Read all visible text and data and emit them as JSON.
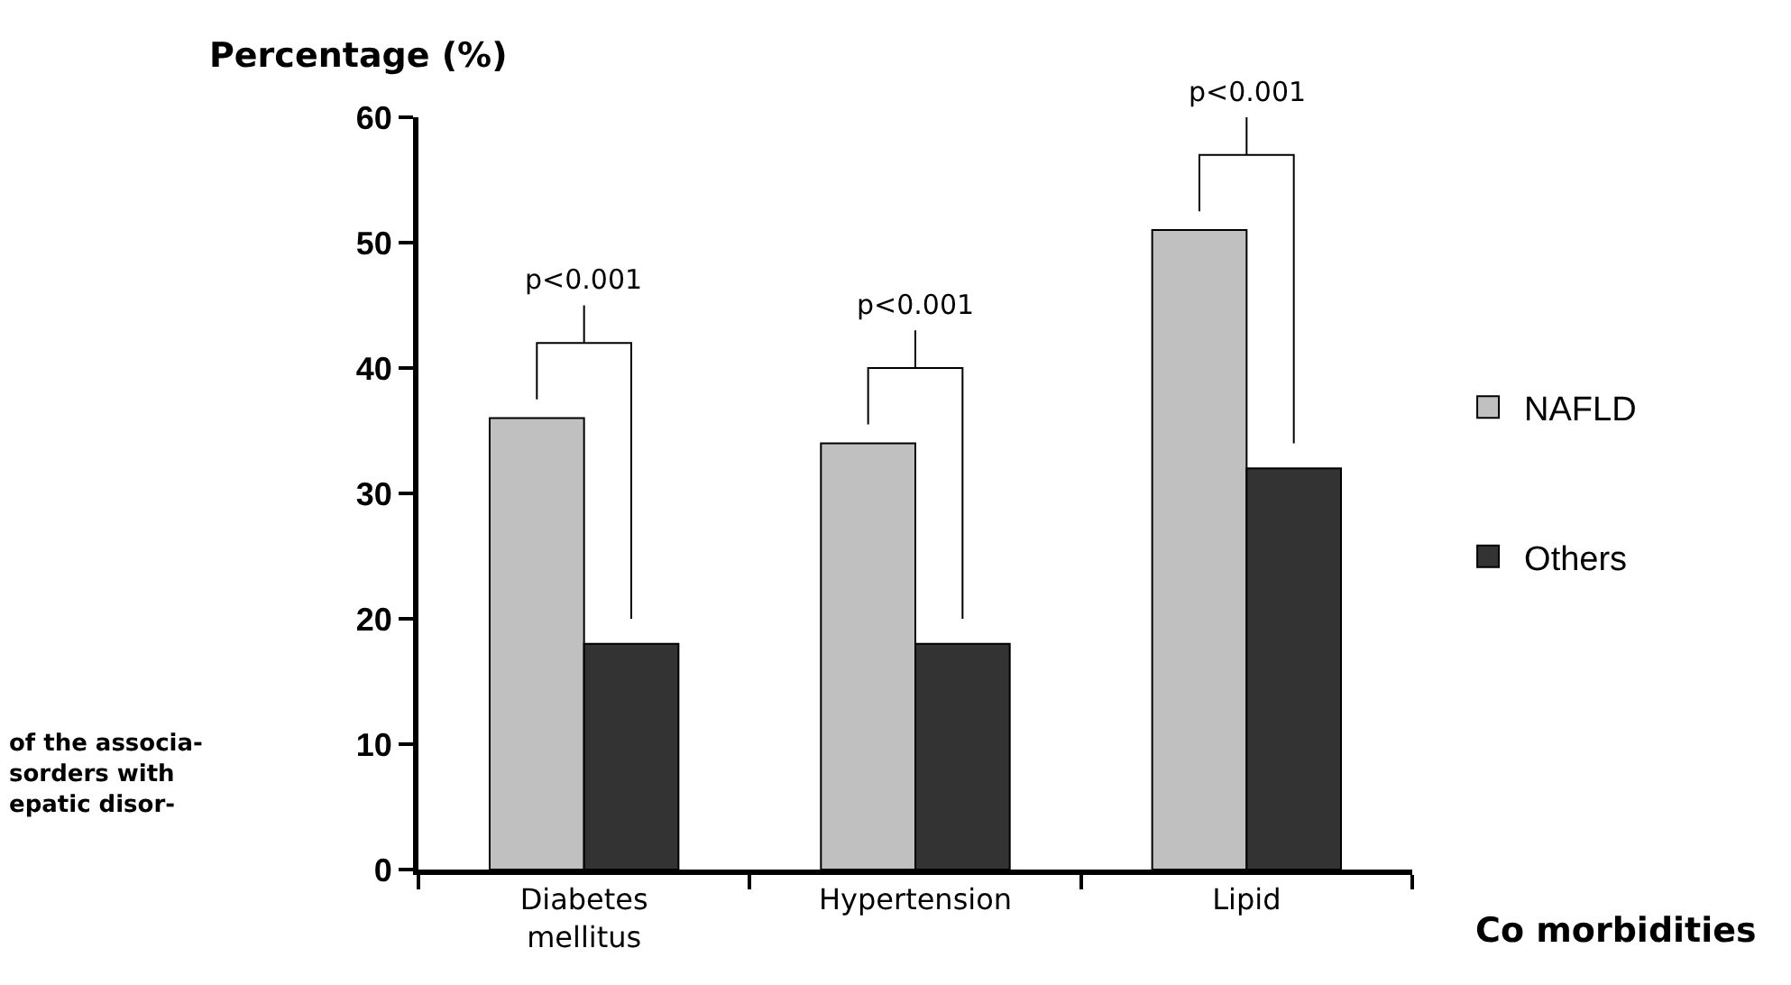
{
  "chart_data": {
    "type": "bar",
    "categories": [
      "Diabetes\nmellitus",
      "Hypertension",
      "Lipid"
    ],
    "series": [
      {
        "name": "NAFLD",
        "color": "#c0c0c0",
        "values": [
          36,
          34,
          51
        ]
      },
      {
        "name": "Others",
        "color": "#333333",
        "values": [
          18,
          18,
          32
        ]
      }
    ],
    "xlabel": "Co morbidities",
    "ylabel": "Percentage (%)",
    "ylim": [
      0,
      60
    ],
    "yticks": [
      0,
      10,
      20,
      30,
      40,
      50,
      60
    ],
    "annotations": [
      "p<0.001",
      "p<0.001",
      "p<0.001",
      "of the associa-\nsorders with\nepatic disor-"
    ],
    "legend": "right"
  }
}
